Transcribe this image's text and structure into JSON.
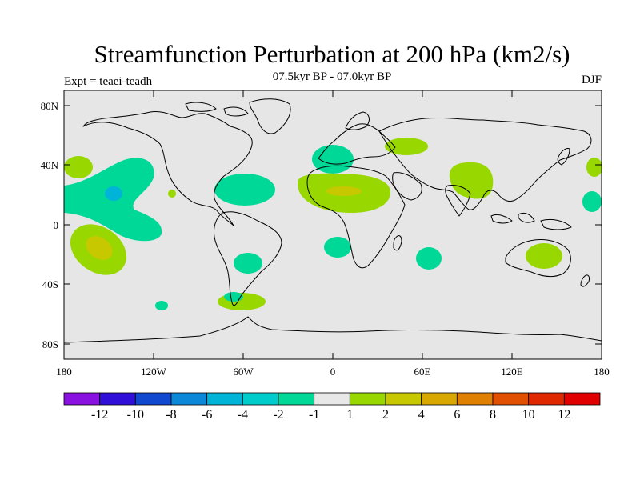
{
  "title": "Streamfunction Perturbation at 200 hPa (km2/s)",
  "subtitle": "07.5kyr BP - 07.0kyr BP",
  "experiment": "Expt = teaei-teadh",
  "season": "DJF",
  "lat_labels": [
    "80N",
    "40N",
    "0",
    "40S",
    "80S"
  ],
  "lon_labels": [
    "180",
    "120W",
    "60W",
    "0",
    "60E",
    "120E",
    "180"
  ],
  "colorbar": {
    "labels": [
      "-12",
      "-10",
      "-8",
      "-6",
      "-4",
      "-2",
      "-1",
      "1",
      "2",
      "4",
      "6",
      "8",
      "10",
      "12"
    ],
    "colors": [
      "#8a12e0",
      "#3010d8",
      "#1048d0",
      "#0c88d8",
      "#00b4d8",
      "#00cccc",
      "#00d898",
      "#e8e8e8",
      "#98d800",
      "#c8c800",
      "#d8a800",
      "#e08000",
      "#e05000",
      "#e02800",
      "#e00000"
    ]
  },
  "colors": {
    "ocean_bg": "#e6e6e6",
    "coast": "#000000"
  }
}
